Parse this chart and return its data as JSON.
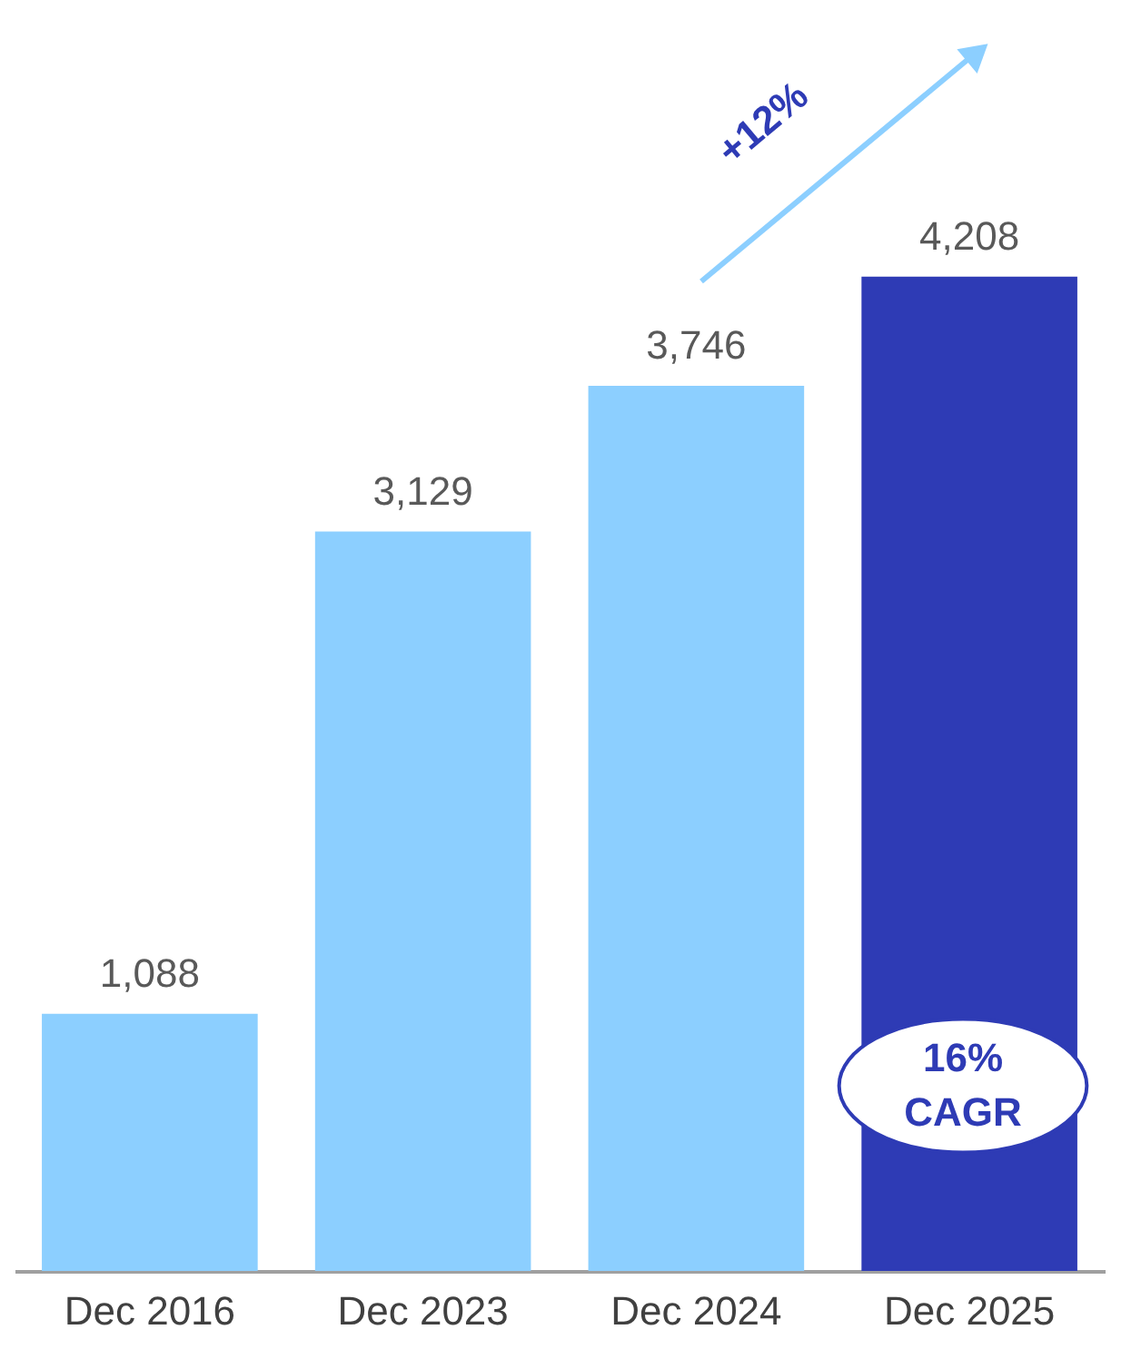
{
  "chart_data": {
    "type": "bar",
    "categories": [
      "Dec 2016",
      "Dec 2023",
      "Dec 2024",
      "Dec 2025"
    ],
    "values": [
      1088,
      3129,
      3746,
      4208
    ],
    "colors": [
      "#8ccfff",
      "#8ccfff",
      "#8ccfff",
      "#2e3bb5"
    ],
    "value_labels": [
      "1,088",
      "3,129",
      "3,746",
      "4,208"
    ],
    "annotations": [
      "+12%",
      "16%\nCAGR"
    ]
  }
}
